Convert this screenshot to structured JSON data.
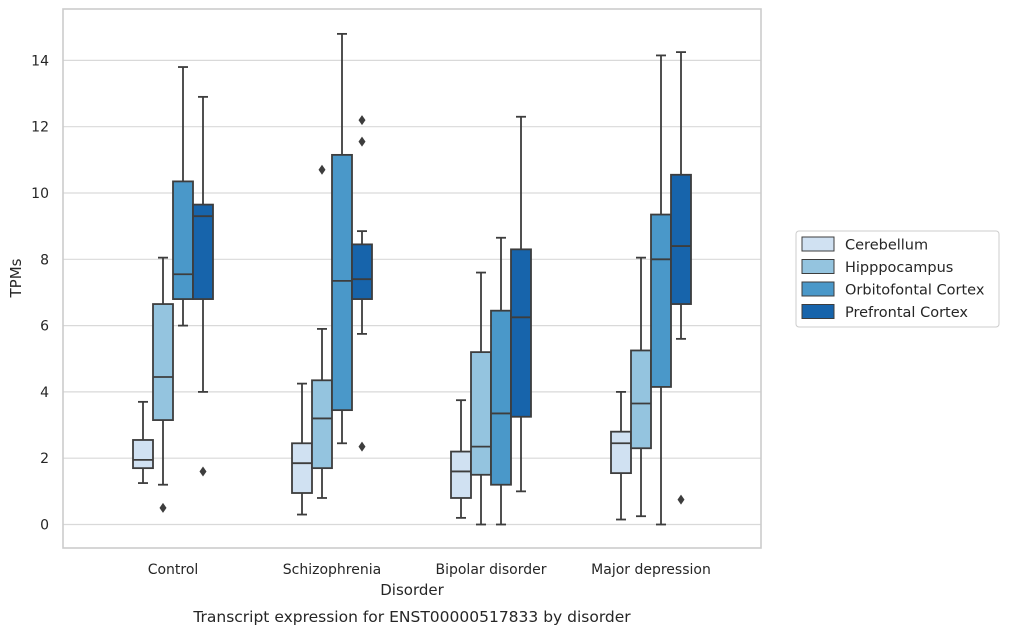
{
  "chart_data": {
    "type": "boxplot",
    "title": "",
    "caption": "Transcript expression for ENST00000517833 by disorder",
    "xlabel": "Disorder",
    "ylabel": "TPMs",
    "ylim": [
      -0.7,
      15.5
    ],
    "yticks": [
      0,
      2,
      4,
      6,
      8,
      10,
      12,
      14
    ],
    "grid": "horizontal",
    "legend_position": "right",
    "categories": [
      "Control",
      "Schizophrenia",
      "Bipolar disorder",
      "Major depression"
    ],
    "series": [
      {
        "name": "Cerebellum",
        "color": "#d0e1f2",
        "boxes": [
          {
            "whisker_low": 1.25,
            "q1": 1.7,
            "median": 1.95,
            "q3": 2.55,
            "whisker_high": 3.7,
            "outliers": []
          },
          {
            "whisker_low": 0.3,
            "q1": 0.95,
            "median": 1.85,
            "q3": 2.45,
            "whisker_high": 4.25,
            "outliers": []
          },
          {
            "whisker_low": 0.2,
            "q1": 0.8,
            "median": 1.6,
            "q3": 2.2,
            "whisker_high": 3.75,
            "outliers": []
          },
          {
            "whisker_low": 0.15,
            "q1": 1.55,
            "median": 2.45,
            "q3": 2.8,
            "whisker_high": 4.0,
            "outliers": []
          }
        ]
      },
      {
        "name": "Hipppocampus",
        "color": "#94c4df",
        "boxes": [
          {
            "whisker_low": 1.2,
            "q1": 3.15,
            "median": 4.45,
            "q3": 6.65,
            "whisker_high": 8.05,
            "outliers": [
              0.5
            ]
          },
          {
            "whisker_low": 0.8,
            "q1": 1.7,
            "median": 3.2,
            "q3": 4.35,
            "whisker_high": 5.9,
            "outliers": [
              10.7
            ]
          },
          {
            "whisker_low": 0.0,
            "q1": 1.5,
            "median": 2.35,
            "q3": 5.2,
            "whisker_high": 7.6,
            "outliers": []
          },
          {
            "whisker_low": 0.25,
            "q1": 2.3,
            "median": 3.65,
            "q3": 5.25,
            "whisker_high": 8.05,
            "outliers": []
          }
        ]
      },
      {
        "name": "Orbitofontal Cortex",
        "color": "#4a98c9",
        "boxes": [
          {
            "whisker_low": 6.0,
            "q1": 6.8,
            "median": 7.55,
            "q3": 10.35,
            "whisker_high": 13.8,
            "outliers": []
          },
          {
            "whisker_low": 2.45,
            "q1": 3.45,
            "median": 7.35,
            "q3": 11.15,
            "whisker_high": 14.8,
            "outliers": []
          },
          {
            "whisker_low": 0.0,
            "q1": 1.2,
            "median": 3.35,
            "q3": 6.45,
            "whisker_high": 8.65,
            "outliers": []
          },
          {
            "whisker_low": 0.0,
            "q1": 4.15,
            "median": 8.0,
            "q3": 9.35,
            "whisker_high": 14.15,
            "outliers": []
          }
        ]
      },
      {
        "name": "Prefrontal Cortex",
        "color": "#1764ab",
        "boxes": [
          {
            "whisker_low": 4.0,
            "q1": 6.8,
            "median": 9.3,
            "q3": 9.65,
            "whisker_high": 12.9,
            "outliers": [
              1.6
            ]
          },
          {
            "whisker_low": 5.75,
            "q1": 6.8,
            "median": 7.4,
            "q3": 8.45,
            "whisker_high": 8.85,
            "outliers": [
              12.2,
              11.55,
              2.35
            ]
          },
          {
            "whisker_low": 1.0,
            "q1": 3.25,
            "median": 6.25,
            "q3": 8.3,
            "whisker_high": 12.3,
            "outliers": []
          },
          {
            "whisker_low": 5.6,
            "q1": 6.65,
            "median": 8.4,
            "q3": 10.55,
            "whisker_high": 14.25,
            "outliers": [
              0.75
            ]
          }
        ]
      }
    ]
  }
}
